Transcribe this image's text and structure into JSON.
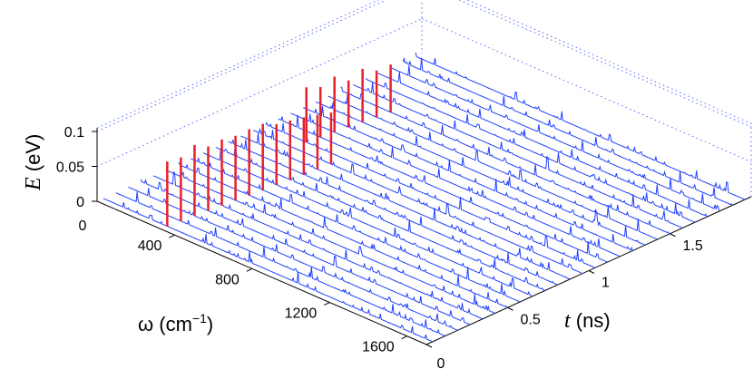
{
  "chart_data": {
    "type": "waterfall-3d",
    "x_axis": {
      "symbol": "ω",
      "unit_open": " (cm",
      "unit_sup": "−1",
      "unit_close": ")",
      "ticks": [
        400,
        800,
        1200,
        1600
      ],
      "range": [
        0,
        1700
      ]
    },
    "y_axis": {
      "symbol": "t",
      "unit": " (ns)",
      "ticks": [
        0,
        0.5,
        1,
        1.5
      ],
      "range": [
        0,
        2
      ]
    },
    "z_axis": {
      "symbol": "E",
      "unit": " (eV)",
      "ticks": [
        0,
        0.05,
        0.1
      ],
      "range": [
        0,
        0.12
      ]
    },
    "num_traces": 26,
    "series": [
      {
        "role": "spectra",
        "color": "#1f3fff"
      },
      {
        "role": "dominant_peak",
        "color": "#e8202a"
      }
    ],
    "dominant_peak_w": [
      330,
      1185
    ],
    "dominant_peak_E": 0.11,
    "secondary_peaks_w": [
      100,
      520,
      760,
      1000,
      1440,
      1600
    ]
  },
  "labels": {
    "x_origin": "0",
    "y_origin": "0"
  }
}
